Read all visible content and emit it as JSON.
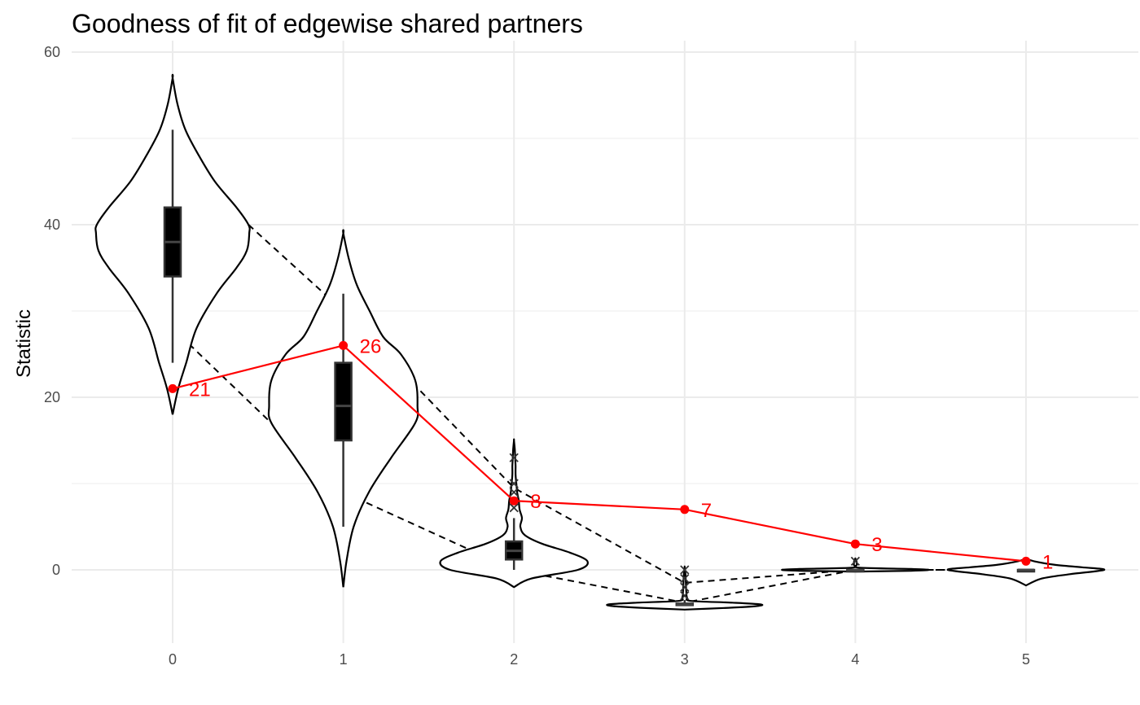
{
  "chart_data": {
    "type": "violin",
    "title": "Goodness of fit of edgewise shared partners",
    "xlabel": "",
    "ylabel": "Statistic",
    "categories": [
      "0",
      "1",
      "2",
      "3",
      "4",
      "5"
    ],
    "ylim": [
      -8,
      60
    ],
    "y_ticks": [
      0,
      20,
      40,
      60
    ],
    "grid": true,
    "observed": {
      "values": [
        21,
        26,
        8,
        7,
        3,
        1
      ],
      "labels": [
        "21",
        "26",
        "8",
        "7",
        "3",
        "1"
      ],
      "color": "#ff0000"
    },
    "ci_upper": [
      48,
      30,
      9.5,
      -1.5,
      0,
      0
    ],
    "ci_lower": [
      28,
      9,
      0,
      -3.8,
      0,
      0
    ],
    "boxplots": [
      {
        "whisker_low": 24,
        "q1": 34,
        "median": 38,
        "q3": 42,
        "whisker_high": 51,
        "outliers": []
      },
      {
        "whisker_low": 5,
        "q1": 15,
        "median": 19,
        "q3": 24,
        "whisker_high": 32,
        "outliers": []
      },
      {
        "whisker_low": 0,
        "q1": 1.2,
        "median": 2.2,
        "q3": 3.3,
        "whisker_high": 6,
        "outliers": [
          7.2,
          8,
          9,
          10,
          13
        ]
      },
      {
        "whisker_low": -4.1,
        "q1": -4,
        "median": -4,
        "q3": -3.9,
        "whisker_high": -3.5,
        "outliers": [
          -3,
          -2,
          -1,
          0
        ]
      },
      {
        "whisker_low": 0,
        "q1": 0,
        "median": 0,
        "q3": 0,
        "whisker_high": 0,
        "outliers": [
          1
        ]
      },
      {
        "whisker_low": 0,
        "q1": 0,
        "median": 0,
        "q3": 0,
        "whisker_high": 0,
        "outliers": []
      }
    ],
    "violins": [
      {
        "profile": [
          [
            18,
            0
          ],
          [
            21,
            0.07
          ],
          [
            24,
            0.17
          ],
          [
            28,
            0.3
          ],
          [
            32,
            0.55
          ],
          [
            35,
            0.8
          ],
          [
            37,
            0.93
          ],
          [
            39,
            0.96
          ],
          [
            40,
            0.95
          ],
          [
            42,
            0.8
          ],
          [
            45,
            0.53
          ],
          [
            48,
            0.33
          ],
          [
            51,
            0.16
          ],
          [
            54,
            0.06
          ],
          [
            57,
            0
          ]
        ]
      },
      {
        "profile": [
          [
            -2,
            0
          ],
          [
            1,
            0.04
          ],
          [
            5,
            0.13
          ],
          [
            9,
            0.32
          ],
          [
            13,
            0.6
          ],
          [
            17,
            0.9
          ],
          [
            19,
            0.93
          ],
          [
            22,
            0.9
          ],
          [
            25,
            0.72
          ],
          [
            27,
            0.5
          ],
          [
            30,
            0.33
          ],
          [
            33,
            0.17
          ],
          [
            36,
            0.07
          ],
          [
            39,
            0
          ]
        ]
      },
      {
        "profile": [
          [
            -2,
            0
          ],
          [
            -1,
            0.22
          ],
          [
            0,
            0.8
          ],
          [
            1,
            0.92
          ],
          [
            2,
            0.7
          ],
          [
            3,
            0.36
          ],
          [
            4,
            0.14
          ],
          [
            5,
            0.08
          ],
          [
            6,
            0.1
          ],
          [
            7,
            0.07
          ],
          [
            8,
            0.06
          ],
          [
            9,
            0.04
          ],
          [
            10,
            0.03
          ],
          [
            11,
            0.02
          ],
          [
            12,
            0.02
          ],
          [
            13,
            0.015
          ],
          [
            14,
            0.01
          ],
          [
            15,
            0
          ]
        ]
      },
      {
        "profile": [
          [
            -4.6,
            0
          ],
          [
            -4.4,
            0.55
          ],
          [
            -4.2,
            0.9
          ],
          [
            -4,
            0.95
          ],
          [
            -3.8,
            0.6
          ],
          [
            -3.6,
            0.08
          ],
          [
            -3.2,
            0.03
          ],
          [
            -2.5,
            0.02
          ],
          [
            -1.5,
            0.015
          ],
          [
            -0.5,
            0.01
          ],
          [
            0.3,
            0
          ]
        ]
      },
      {
        "profile": [
          [
            -0.2,
            0
          ],
          [
            -0.1,
            0.7
          ],
          [
            0,
            0.92
          ],
          [
            0.1,
            0.7
          ],
          [
            0.25,
            0.05
          ],
          [
            0.6,
            0.02
          ],
          [
            1,
            0.015
          ],
          [
            1.3,
            0
          ]
        ]
      },
      {
        "profile": [
          [
            -1.8,
            0
          ],
          [
            -1,
            0.2
          ],
          [
            -0.5,
            0.55
          ],
          [
            0,
            0.98
          ],
          [
            0.3,
            0.7
          ],
          [
            0.6,
            0.35
          ],
          [
            1,
            0.1
          ],
          [
            1.3,
            0
          ]
        ]
      }
    ]
  }
}
